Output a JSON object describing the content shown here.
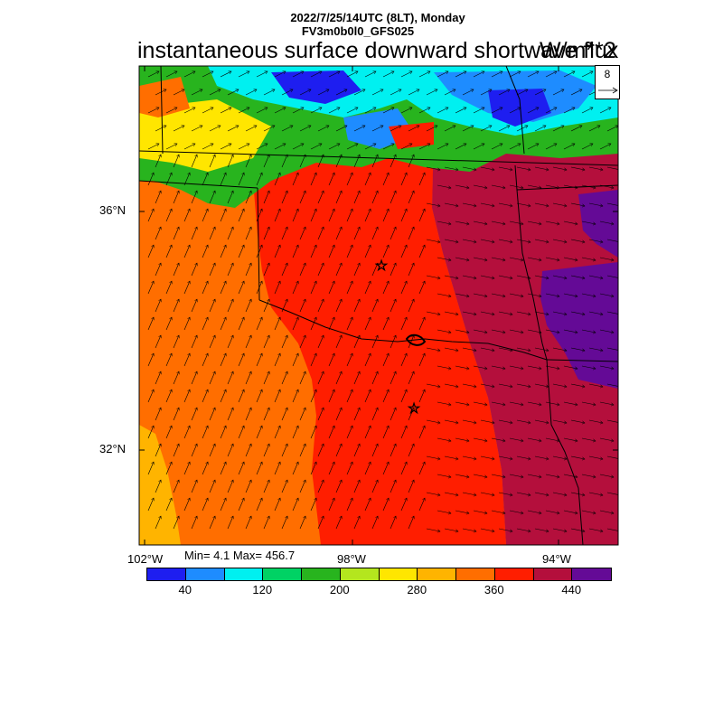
{
  "header": {
    "datetime": "2022/7/25/14UTC (8LT), Monday",
    "model": "FV3m0b0l0_GFS025",
    "title": "instantaneous surface downward shortwave flux",
    "units": "W/m**2"
  },
  "reference_vector": {
    "value": "8"
  },
  "axes": {
    "lat_labels": [
      "36°N",
      "32°N"
    ],
    "lon_labels": [
      "102°W",
      "98°W",
      "94°W"
    ]
  },
  "stats": {
    "text": "Min= 4.1 Max= 456.7"
  },
  "colorbar": {
    "colors": [
      "#1e1ef0",
      "#1e8cff",
      "#00f0f0",
      "#00d264",
      "#28b41e",
      "#b4e61e",
      "#ffe600",
      "#ffb400",
      "#ff6e00",
      "#ff1e00",
      "#b40f3c",
      "#640a96"
    ],
    "labels": [
      "40",
      "120",
      "200",
      "280",
      "360",
      "440"
    ]
  },
  "markers": {
    "symbol": "☆"
  }
}
